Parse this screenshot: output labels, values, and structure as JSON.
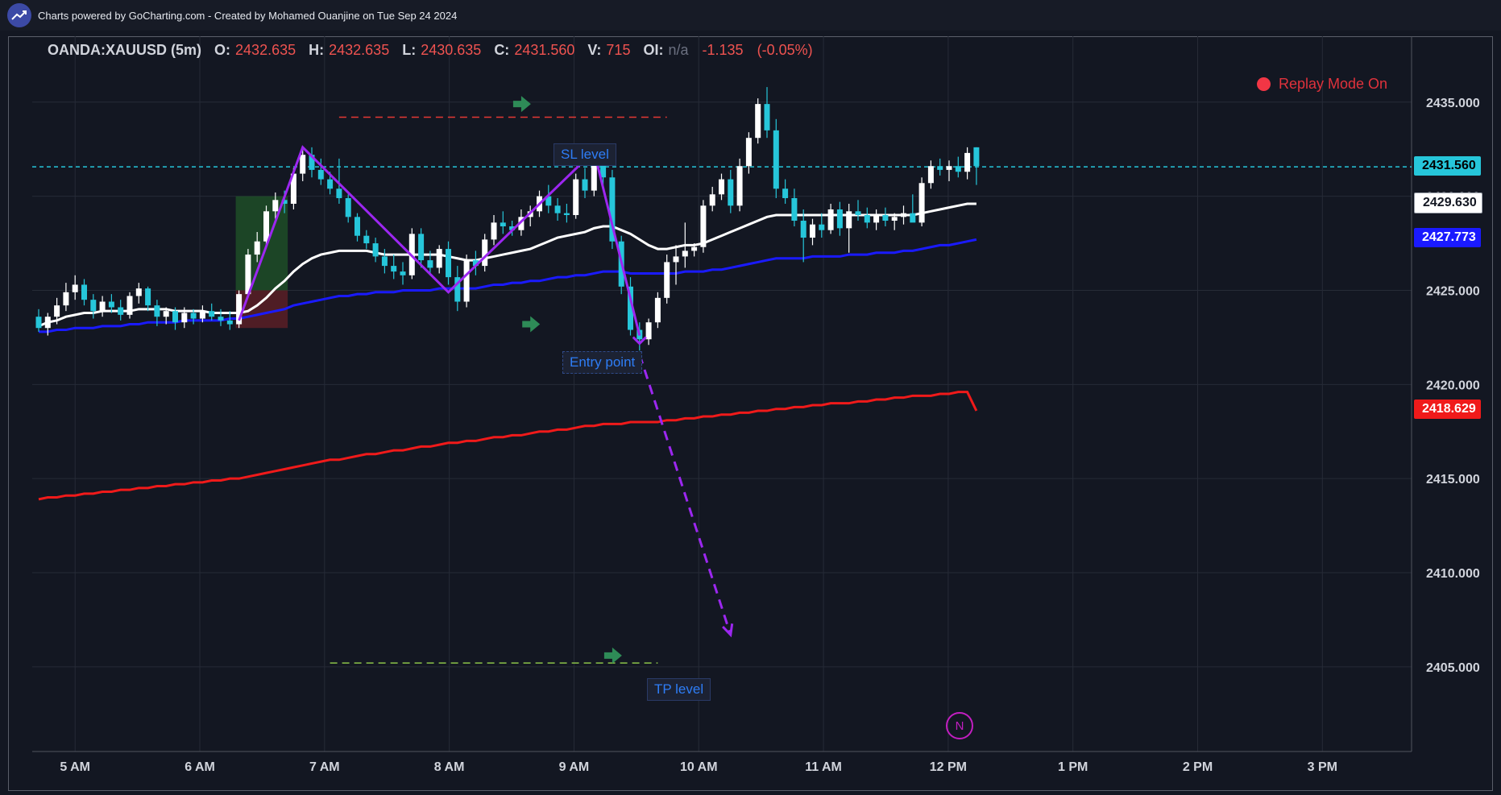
{
  "header": {
    "credit": "Charts powered by GoCharting.com - Created by Mohamed Ouanjine on Tue Sep 24 2024",
    "logo_icon": "trend-chart-icon"
  },
  "legend": {
    "symbol": "OANDA:XAUUSD (5m)",
    "open_label": "O:",
    "open": "2432.635",
    "high_label": "H:",
    "high": "2432.635",
    "low_label": "L:",
    "low": "2430.635",
    "close_label": "C:",
    "close": "2431.560",
    "volume_label": "V:",
    "volume": "715",
    "oi_label": "OI:",
    "oi": "n/a",
    "change": "-1.135",
    "change_pct": "(-0.05%)"
  },
  "replay": {
    "label": "Replay Mode On",
    "color": "#f23645"
  },
  "annotations": {
    "sl": "SL level",
    "entry": "Entry point",
    "tp": "TP level",
    "badge": "N"
  },
  "price_labels": {
    "last": {
      "text": "2431.560",
      "bg": "#26c6da",
      "fg": "#000000"
    },
    "ma_fast": {
      "text": "2429.630",
      "bg": "#ffffff",
      "fg": "#131722"
    },
    "ma_mid": {
      "text": "2427.773",
      "bg": "#1a1aff",
      "fg": "#ffffff"
    },
    "ma_slow": {
      "text": "2418.629",
      "bg": "#f01a1a",
      "fg": "#ffffff"
    }
  },
  "chart_data": {
    "type": "candlestick",
    "xlabel": "",
    "ylabel": "",
    "x_ticks": [
      "5 AM",
      "6 AM",
      "7 AM",
      "8 AM",
      "9 AM",
      "10 AM",
      "11 AM",
      "12 PM",
      "1 PM",
      "2 PM",
      "3 PM"
    ],
    "y_ticks": [
      "2405.000",
      "2410.000",
      "2415.000",
      "2420.000",
      "2425.000",
      "2430.000",
      "2435.000"
    ],
    "ylim": [
      2400.5,
      2438.5
    ],
    "grid": true,
    "candle_colors": {
      "up": "#ffffff",
      "down": "#26c6da"
    },
    "candles": [
      [
        2423.6,
        2424.0,
        2422.8,
        2423.0
      ],
      [
        2423.0,
        2423.8,
        2422.6,
        2423.6
      ],
      [
        2423.6,
        2424.6,
        2423.2,
        2424.2
      ],
      [
        2424.2,
        2425.4,
        2423.9,
        2424.9
      ],
      [
        2424.9,
        2425.8,
        2424.5,
        2425.3
      ],
      [
        2425.3,
        2425.6,
        2424.2,
        2424.5
      ],
      [
        2424.5,
        2424.8,
        2423.5,
        2423.9
      ],
      [
        2423.9,
        2424.7,
        2423.6,
        2424.4
      ],
      [
        2424.4,
        2424.8,
        2423.8,
        2424.1
      ],
      [
        2424.1,
        2424.5,
        2423.4,
        2423.7
      ],
      [
        2423.7,
        2424.9,
        2423.5,
        2424.7
      ],
      [
        2424.7,
        2425.4,
        2424.3,
        2425.1
      ],
      [
        2425.1,
        2425.2,
        2423.9,
        2424.2
      ],
      [
        2424.2,
        2424.5,
        2423.1,
        2423.6
      ],
      [
        2423.6,
        2424.1,
        2423.2,
        2423.9
      ],
      [
        2423.9,
        2424.1,
        2422.9,
        2423.3
      ],
      [
        2423.3,
        2424.1,
        2423.0,
        2423.8
      ],
      [
        2423.8,
        2424.0,
        2423.2,
        2423.5
      ],
      [
        2423.5,
        2424.2,
        2423.3,
        2423.9
      ],
      [
        2423.9,
        2424.3,
        2423.4,
        2423.6
      ],
      [
        2423.6,
        2424.0,
        2423.1,
        2423.4
      ],
      [
        2423.4,
        2423.9,
        2422.9,
        2423.2
      ],
      [
        2423.2,
        2425.0,
        2423.0,
        2424.8
      ],
      [
        2424.8,
        2427.2,
        2424.6,
        2426.9
      ],
      [
        2426.9,
        2428.1,
        2426.5,
        2427.6
      ],
      [
        2427.6,
        2429.5,
        2427.3,
        2429.2
      ],
      [
        2429.2,
        2430.2,
        2428.8,
        2429.8
      ],
      [
        2429.8,
        2430.3,
        2429.1,
        2429.6
      ],
      [
        2429.6,
        2431.5,
        2429.3,
        2431.2
      ],
      [
        2431.2,
        2432.5,
        2430.8,
        2432.2
      ],
      [
        2432.2,
        2432.6,
        2431.0,
        2431.4
      ],
      [
        2431.4,
        2432.0,
        2430.6,
        2430.9
      ],
      [
        2430.9,
        2431.3,
        2430.1,
        2430.4
      ],
      [
        2430.4,
        2432.0,
        2429.6,
        2429.9
      ],
      [
        2429.9,
        2430.1,
        2428.6,
        2428.9
      ],
      [
        2428.9,
        2429.1,
        2427.6,
        2427.9
      ],
      [
        2427.9,
        2428.2,
        2427.2,
        2427.5
      ],
      [
        2427.5,
        2427.8,
        2426.5,
        2426.8
      ],
      [
        2426.8,
        2427.2,
        2425.9,
        2426.3
      ],
      [
        2426.3,
        2426.9,
        2425.6,
        2426.0
      ],
      [
        2426.0,
        2426.5,
        2425.3,
        2425.8
      ],
      [
        2425.8,
        2428.3,
        2425.6,
        2428.0
      ],
      [
        2428.0,
        2428.3,
        2426.2,
        2426.6
      ],
      [
        2426.6,
        2427.1,
        2425.8,
        2426.2
      ],
      [
        2426.2,
        2427.4,
        2425.9,
        2427.2
      ],
      [
        2427.2,
        2427.6,
        2425.3,
        2425.7
      ],
      [
        2425.7,
        2426.3,
        2423.9,
        2424.4
      ],
      [
        2424.4,
        2426.9,
        2424.1,
        2426.6
      ],
      [
        2426.6,
        2427.1,
        2425.8,
        2426.3
      ],
      [
        2426.3,
        2428.0,
        2426.0,
        2427.7
      ],
      [
        2427.7,
        2429.0,
        2427.4,
        2428.6
      ],
      [
        2428.6,
        2429.2,
        2428.0,
        2428.4
      ],
      [
        2428.4,
        2428.7,
        2427.9,
        2428.2
      ],
      [
        2428.2,
        2429.3,
        2427.9,
        2428.9
      ],
      [
        2428.9,
        2429.5,
        2428.4,
        2429.2
      ],
      [
        2429.2,
        2430.3,
        2428.9,
        2430.0
      ],
      [
        2430.0,
        2430.6,
        2429.1,
        2429.5
      ],
      [
        2429.5,
        2429.9,
        2428.7,
        2429.1
      ],
      [
        2429.1,
        2429.6,
        2428.6,
        2429.0
      ],
      [
        2429.0,
        2431.2,
        2428.8,
        2430.9
      ],
      [
        2430.9,
        2431.5,
        2429.9,
        2430.3
      ],
      [
        2430.3,
        2432.2,
        2430.0,
        2431.8
      ],
      [
        2431.8,
        2432.1,
        2430.6,
        2431.0
      ],
      [
        2431.0,
        2431.4,
        2427.2,
        2427.6
      ],
      [
        2427.6,
        2427.9,
        2424.8,
        2425.2
      ],
      [
        2425.2,
        2425.7,
        2422.6,
        2422.9
      ],
      [
        2422.9,
        2423.3,
        2421.8,
        2422.4
      ],
      [
        2422.4,
        2423.5,
        2422.1,
        2423.3
      ],
      [
        2423.3,
        2424.9,
        2423.0,
        2424.6
      ],
      [
        2424.6,
        2426.9,
        2424.3,
        2426.5
      ],
      [
        2426.5,
        2427.4,
        2425.3,
        2426.8
      ],
      [
        2426.8,
        2428.6,
        2426.2,
        2427.1
      ],
      [
        2427.1,
        2427.5,
        2426.8,
        2427.3
      ],
      [
        2427.3,
        2429.8,
        2427.0,
        2429.5
      ],
      [
        2429.5,
        2430.5,
        2429.2,
        2430.1
      ],
      [
        2430.1,
        2431.2,
        2429.8,
        2430.9
      ],
      [
        2430.9,
        2431.4,
        2429.1,
        2429.5
      ],
      [
        2429.5,
        2432.0,
        2429.2,
        2431.6
      ],
      [
        2431.6,
        2433.4,
        2431.2,
        2433.1
      ],
      [
        2433.1,
        2435.2,
        2432.8,
        2434.9
      ],
      [
        2434.9,
        2435.8,
        2433.1,
        2433.5
      ],
      [
        2433.5,
        2434.1,
        2429.9,
        2430.4
      ],
      [
        2430.4,
        2430.9,
        2429.6,
        2429.9
      ],
      [
        2429.9,
        2430.4,
        2428.4,
        2428.7
      ],
      [
        2428.7,
        2429.3,
        2426.5,
        2427.8
      ],
      [
        2427.8,
        2428.8,
        2427.4,
        2428.5
      ],
      [
        2428.5,
        2429.1,
        2427.8,
        2428.2
      ],
      [
        2428.2,
        2429.6,
        2428.0,
        2429.3
      ],
      [
        2429.3,
        2429.7,
        2427.9,
        2428.3
      ],
      [
        2428.3,
        2429.6,
        2427.0,
        2429.2
      ],
      [
        2429.2,
        2429.8,
        2428.7,
        2429.0
      ],
      [
        2429.0,
        2429.4,
        2428.3,
        2428.6
      ],
      [
        2428.6,
        2429.3,
        2428.2,
        2429.0
      ],
      [
        2429.0,
        2429.4,
        2428.4,
        2428.7
      ],
      [
        2428.7,
        2429.1,
        2428.2,
        2428.9
      ],
      [
        2428.9,
        2429.5,
        2428.5,
        2429.1
      ],
      [
        2429.1,
        2430.1,
        2428.7,
        2428.6
      ],
      [
        2428.6,
        2431.0,
        2428.4,
        2430.7
      ],
      [
        2430.7,
        2431.9,
        2430.4,
        2431.6
      ],
      [
        2431.6,
        2432.0,
        2431.1,
        2431.4
      ],
      [
        2431.4,
        2431.9,
        2430.8,
        2431.6
      ],
      [
        2431.6,
        2432.1,
        2431.0,
        2431.3
      ],
      [
        2431.3,
        2432.6,
        2430.9,
        2432.3
      ],
      [
        2432.6,
        2432.6,
        2430.6,
        2431.6
      ]
    ],
    "indicators": [
      {
        "color": "#ffffff",
        "values": [
          2423.1,
          2423.3,
          2423.4,
          2423.6,
          2423.7,
          2423.8,
          2423.8,
          2423.9,
          2423.9,
          2423.9,
          2423.9,
          2424.0,
          2424.0,
          2424.0,
          2424.0,
          2423.9,
          2423.9,
          2423.9,
          2423.9,
          2423.8,
          2423.8,
          2423.8,
          2423.8,
          2423.9,
          2424.2,
          2424.6,
          2425.1,
          2425.5,
          2426.0,
          2426.4,
          2426.7,
          2426.9,
          2427.0,
          2427.1,
          2427.1,
          2427.1,
          2427.1,
          2427.0,
          2426.9,
          2426.9,
          2426.9,
          2426.9,
          2426.9,
          2426.9,
          2426.9,
          2426.8,
          2426.7,
          2426.6,
          2426.6,
          2426.7,
          2426.8,
          2426.9,
          2427.0,
          2427.1,
          2427.2,
          2427.4,
          2427.6,
          2427.8,
          2427.9,
          2428.0,
          2428.1,
          2428.3,
          2428.4,
          2428.4,
          2428.2,
          2428.0,
          2427.7,
          2427.4,
          2427.2,
          2427.2,
          2427.3,
          2427.4,
          2427.4,
          2427.5,
          2427.7,
          2427.9,
          2428.1,
          2428.3,
          2428.5,
          2428.7,
          2428.9,
          2429.0,
          2429.0,
          2429.0,
          2429.0,
          2429.0,
          2429.0,
          2429.0,
          2429.0,
          2429.0,
          2429.0,
          2429.0,
          2429.0,
          2429.0,
          2429.0,
          2429.0,
          2429.0,
          2429.1,
          2429.2,
          2429.3,
          2429.4,
          2429.5,
          2429.6,
          2429.6
        ]
      },
      {
        "color": "#1a1aff",
        "values": [
          2422.8,
          2422.8,
          2422.9,
          2422.9,
          2423.0,
          2423.0,
          2423.0,
          2423.1,
          2423.1,
          2423.1,
          2423.2,
          2423.2,
          2423.3,
          2423.3,
          2423.3,
          2423.3,
          2423.4,
          2423.4,
          2423.4,
          2423.4,
          2423.4,
          2423.5,
          2423.5,
          2423.6,
          2423.7,
          2423.8,
          2423.9,
          2424.0,
          2424.2,
          2424.3,
          2424.4,
          2424.5,
          2424.6,
          2424.7,
          2424.7,
          2424.8,
          2424.8,
          2424.9,
          2424.9,
          2424.9,
          2425.0,
          2425.0,
          2425.0,
          2425.0,
          2425.1,
          2425.1,
          2425.1,
          2425.1,
          2425.1,
          2425.2,
          2425.3,
          2425.3,
          2425.4,
          2425.4,
          2425.5,
          2425.5,
          2425.6,
          2425.7,
          2425.7,
          2425.8,
          2425.8,
          2425.9,
          2426.0,
          2426.0,
          2426.0,
          2425.9,
          2425.9,
          2425.9,
          2425.9,
          2425.9,
          2425.9,
          2426.0,
          2426.0,
          2426.0,
          2426.1,
          2426.1,
          2426.2,
          2426.3,
          2426.4,
          2426.5,
          2426.6,
          2426.7,
          2426.7,
          2426.7,
          2426.7,
          2426.8,
          2426.8,
          2426.8,
          2426.8,
          2426.9,
          2426.9,
          2426.9,
          2427.0,
          2427.0,
          2427.0,
          2427.1,
          2427.1,
          2427.2,
          2427.3,
          2427.4,
          2427.4,
          2427.5,
          2427.6,
          2427.7
        ]
      },
      {
        "color": "#f01a1a",
        "values": [
          2413.9,
          2414.0,
          2414.0,
          2414.1,
          2414.1,
          2414.2,
          2414.2,
          2414.3,
          2414.3,
          2414.4,
          2414.4,
          2414.5,
          2414.5,
          2414.6,
          2414.6,
          2414.7,
          2414.7,
          2414.8,
          2414.8,
          2414.9,
          2414.9,
          2415.0,
          2415.0,
          2415.1,
          2415.2,
          2415.3,
          2415.4,
          2415.5,
          2415.6,
          2415.7,
          2415.8,
          2415.9,
          2416.0,
          2416.0,
          2416.1,
          2416.2,
          2416.3,
          2416.3,
          2416.4,
          2416.5,
          2416.5,
          2416.6,
          2416.7,
          2416.7,
          2416.8,
          2416.9,
          2416.9,
          2417.0,
          2417.0,
          2417.1,
          2417.2,
          2417.2,
          2417.3,
          2417.3,
          2417.4,
          2417.5,
          2417.5,
          2417.6,
          2417.6,
          2417.7,
          2417.8,
          2417.8,
          2417.9,
          2417.9,
          2417.9,
          2418.0,
          2418.0,
          2418.0,
          2418.0,
          2418.1,
          2418.1,
          2418.2,
          2418.2,
          2418.3,
          2418.3,
          2418.4,
          2418.4,
          2418.5,
          2418.5,
          2418.6,
          2418.6,
          2418.7,
          2418.7,
          2418.8,
          2418.8,
          2418.9,
          2418.9,
          2419.0,
          2419.0,
          2419.0,
          2419.1,
          2419.1,
          2419.2,
          2419.2,
          2419.3,
          2419.3,
          2419.4,
          2419.4,
          2419.4,
          2419.5,
          2419.5,
          2419.6,
          2419.6,
          2418.6
        ]
      }
    ],
    "horizontal_lines": [
      {
        "price": 2431.56,
        "color": "#26c6da",
        "style": "dashed"
      },
      {
        "price": 2434.2,
        "color": "#e53935",
        "style": "dashed",
        "from": 33,
        "to": 69
      },
      {
        "price": 2405.2,
        "color": "#8bc34a",
        "style": "dashed",
        "from": 32,
        "to": 68
      }
    ],
    "zigzag": {
      "color": "#9c27f0",
      "points": [
        [
          22,
          2423.4
        ],
        [
          29,
          2432.6
        ],
        [
          45,
          2424.9
        ],
        [
          61,
          2432.4
        ],
        [
          66,
          2422.6
        ]
      ]
    },
    "projection_arrow": {
      "color": "#9c27f0",
      "from": [
        66,
        2421.6
      ],
      "to": [
        76,
        2406.7
      ]
    },
    "zones": [
      {
        "color": "#1f4d27",
        "x0": 22,
        "x1": 27,
        "y0": 2425.0,
        "y1": 2430.0
      },
      {
        "color": "#5a1f26",
        "x0": 22,
        "x1": 27,
        "y0": 2423.0,
        "y1": 2425.0
      }
    ],
    "arrows": [
      {
        "color": "#2e8b57",
        "x": 53,
        "price": 2434.9
      },
      {
        "color": "#2e8b57",
        "x": 54,
        "price": 2423.2
      },
      {
        "color": "#2e8b57",
        "x": 63,
        "price": 2405.6
      }
    ]
  }
}
